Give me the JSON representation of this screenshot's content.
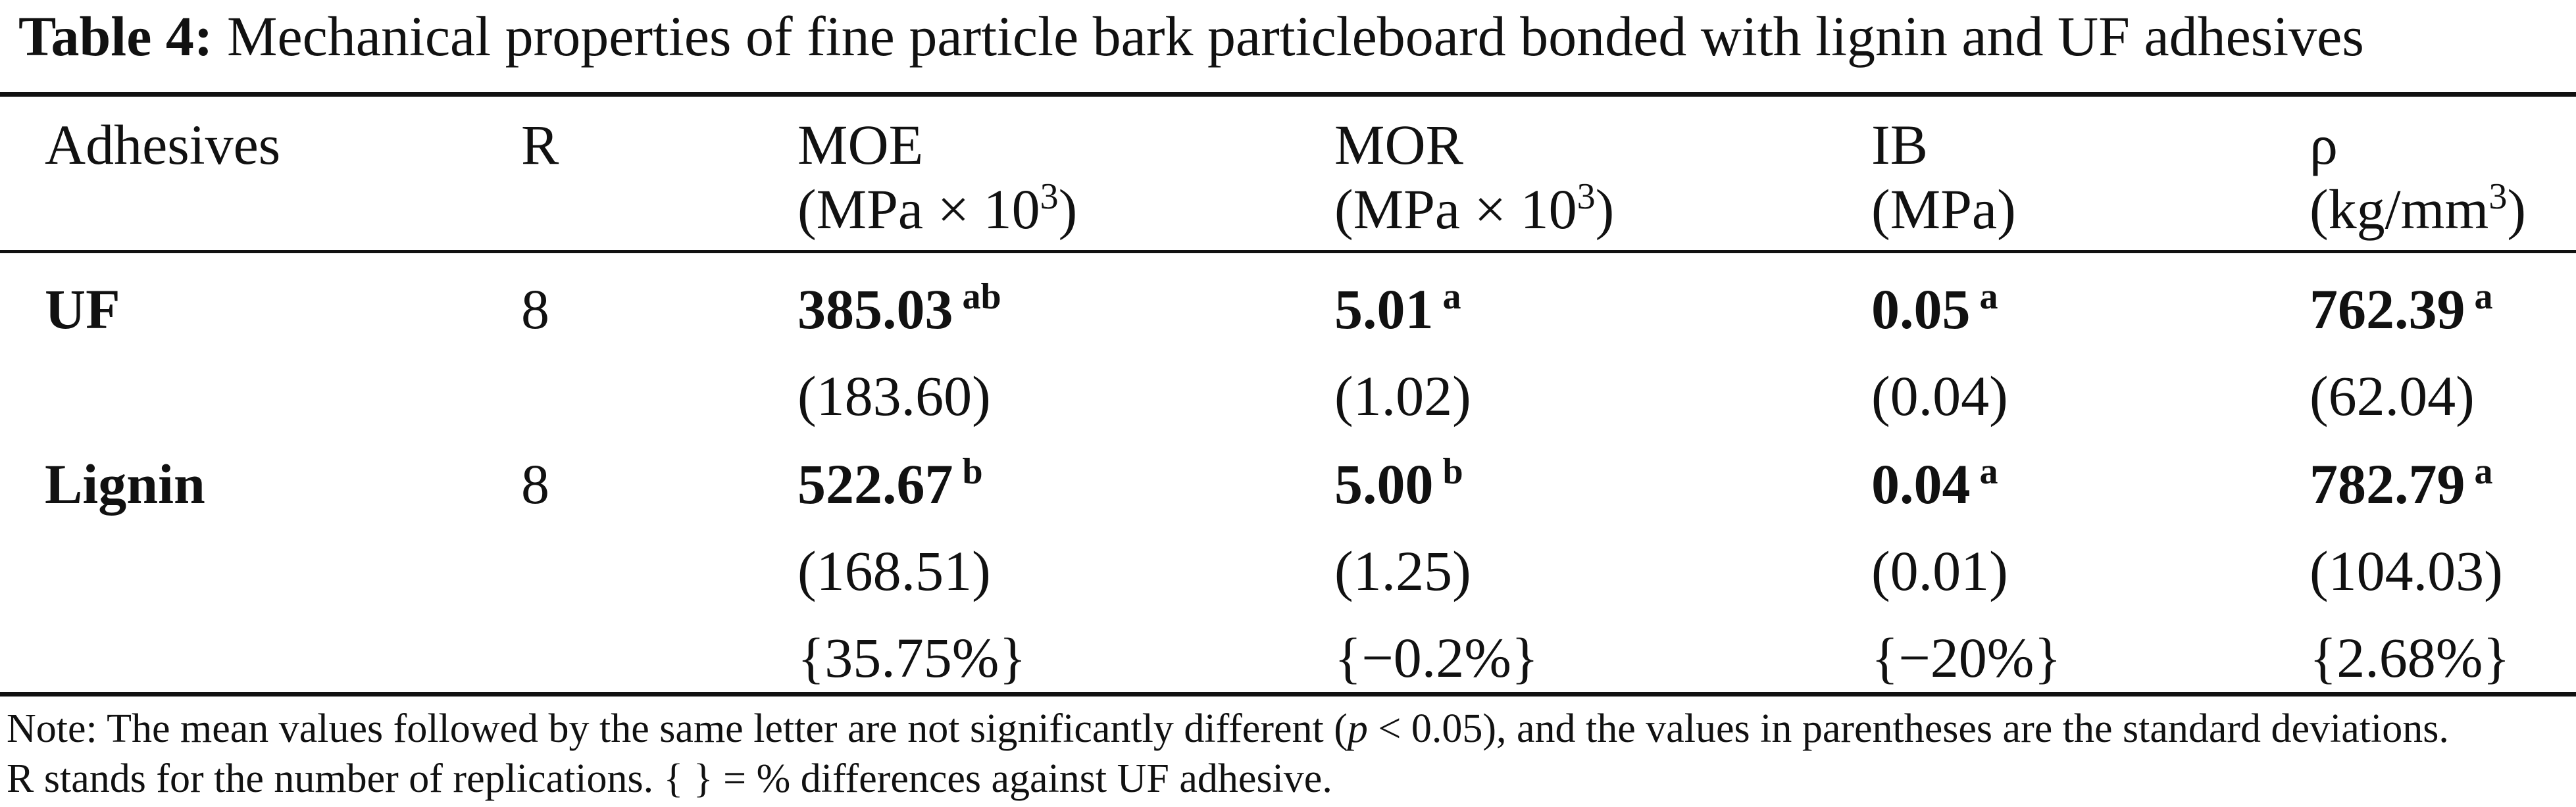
{
  "caption": {
    "label": "Table 4:",
    "text": "Mechanical properties of fine particle bark particleboard bonded with lignin and UF adhesives"
  },
  "headers": {
    "adhesives": "Adhesives",
    "r": "R",
    "moe": {
      "name": "MOE",
      "unit_pre": "(MPa × 10",
      "unit_exp": "3",
      "unit_post": ")"
    },
    "mor": {
      "name": "MOR",
      "unit_pre": "(MPa × 10",
      "unit_exp": "3",
      "unit_post": ")"
    },
    "ib": {
      "name": "IB",
      "unit": "(MPa)"
    },
    "rho": {
      "name": "ρ",
      "unit_pre": "(kg/mm",
      "unit_exp": "3",
      "unit_post": ")"
    }
  },
  "rows": [
    {
      "adhesive": "UF",
      "r": "8",
      "moe": {
        "value": "385.03",
        "letter": "ab",
        "sd": "(183.60)"
      },
      "mor": {
        "value": "5.01",
        "letter": "a",
        "sd": "(1.02)"
      },
      "ib": {
        "value": "0.05",
        "letter": "a",
        "sd": "(0.04)"
      },
      "rho": {
        "value": "762.39",
        "letter": "a",
        "sd": "(62.04)"
      }
    },
    {
      "adhesive": "Lignin",
      "r": "8",
      "moe": {
        "value": "522.67",
        "letter": "b",
        "sd": "(168.51)",
        "diff": "{35.75%}"
      },
      "mor": {
        "value": "5.00",
        "letter": "b",
        "sd": "(1.25)",
        "diff": "{−0.2%}"
      },
      "ib": {
        "value": "0.04",
        "letter": "a",
        "sd": "(0.01)",
        "diff": "{−20%}"
      },
      "rho": {
        "value": "782.79",
        "letter": "a",
        "sd": "(104.03)",
        "diff": "{2.68%}"
      }
    }
  ],
  "note": {
    "line1_a": "Note: The mean values followed by the same letter are not significantly different (",
    "line1_p": "p",
    "line1_b": " < 0.05), and the values in parentheses are the standard deviations.",
    "line2": "R stands for the number of replications. { } = % differences against UF adhesive."
  }
}
